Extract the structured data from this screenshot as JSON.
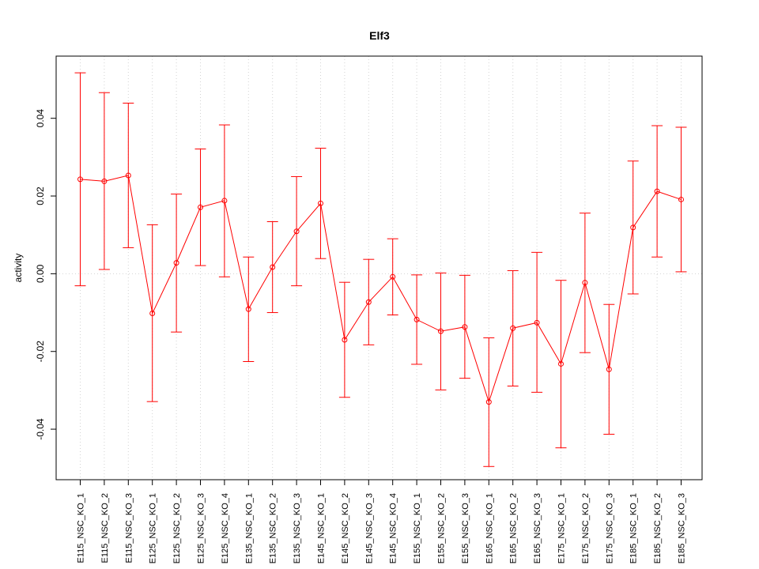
{
  "chart_data": {
    "type": "line",
    "title": "Elf3",
    "xlabel": "",
    "ylabel": "activity",
    "ylim": [
      -0.053,
      0.056
    ],
    "yticks": [
      -0.04,
      -0.02,
      0.0,
      0.02,
      0.04
    ],
    "ytick_labels": [
      "-0.04",
      "-0.02",
      "0.00",
      "0.02",
      "0.04"
    ],
    "grid": true,
    "color": "#ff0000",
    "categories": [
      "E115_NSC_KO_1",
      "E115_NSC_KO_2",
      "E115_NSC_KO_3",
      "E125_NSC_KO_1",
      "E125_NSC_KO_2",
      "E125_NSC_KO_3",
      "E125_NSC_KO_4",
      "E135_NSC_KO_1",
      "E135_NSC_KO_2",
      "E135_NSC_KO_3",
      "E145_NSC_KO_1",
      "E145_NSC_KO_2",
      "E145_NSC_KO_3",
      "E145_NSC_KO_4",
      "E155_NSC_KO_1",
      "E155_NSC_KO_2",
      "E155_NSC_KO_3",
      "E165_NSC_KO_1",
      "E165_NSC_KO_2",
      "E165_NSC_KO_3",
      "E175_NSC_KO_1",
      "E175_NSC_KO_2",
      "E175_NSC_KO_3",
      "E185_NSC_KO_1",
      "E185_NSC_KO_2",
      "E185_NSC_KO_3"
    ],
    "series": [
      {
        "values": [
          0.0243,
          0.0238,
          0.0253,
          -0.0102,
          0.0028,
          0.0171,
          0.0188,
          -0.0091,
          0.0017,
          0.0109,
          0.0181,
          -0.017,
          -0.0073,
          -0.0008,
          -0.0118,
          -0.0148,
          -0.0137,
          -0.033,
          -0.014,
          -0.0126,
          -0.0232,
          -0.0023,
          -0.0246,
          0.0119,
          0.0212,
          0.0191
        ],
        "upper": [
          0.0517,
          0.0466,
          0.0439,
          0.0126,
          0.0205,
          0.0321,
          0.0383,
          0.0043,
          0.0134,
          0.025,
          0.0323,
          -0.0022,
          0.0037,
          0.009,
          -0.0003,
          0.0002,
          -0.0004,
          -0.0165,
          0.0008,
          0.0055,
          -0.0017,
          0.0156,
          -0.0079,
          0.029,
          0.0381,
          0.0377
        ],
        "lower": [
          -0.0031,
          0.0011,
          0.0067,
          -0.0329,
          -0.015,
          0.0021,
          -0.0008,
          -0.0226,
          -0.01,
          -0.0031,
          0.0039,
          -0.0318,
          -0.0183,
          -0.0106,
          -0.0233,
          -0.0299,
          -0.0269,
          -0.0496,
          -0.0289,
          -0.0305,
          -0.0448,
          -0.0203,
          -0.0413,
          -0.0052,
          0.0043,
          0.0005
        ]
      }
    ]
  }
}
